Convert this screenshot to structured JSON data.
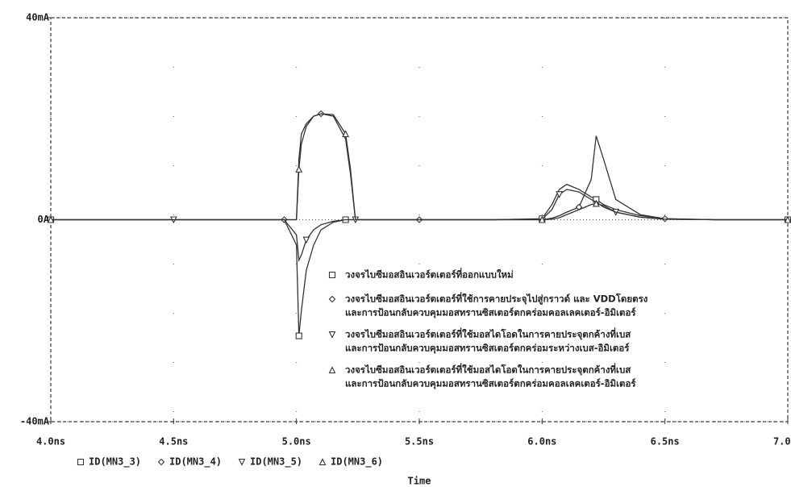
{
  "chart_data": {
    "type": "line",
    "x_label": "Time",
    "x": [
      4.0,
      4.25,
      4.5,
      4.75,
      4.95,
      5.0,
      5.01,
      5.02,
      5.04,
      5.07,
      5.1,
      5.15,
      5.2,
      5.22,
      5.24,
      5.3,
      5.5,
      5.8,
      6.0,
      6.04,
      6.07,
      6.1,
      6.15,
      6.2,
      6.22,
      6.25,
      6.3,
      6.4,
      6.5,
      6.7,
      7.0
    ],
    "xlim": [
      4.0,
      7.0
    ],
    "xticks": [
      {
        "value": 4.0,
        "label": "4.0ns"
      },
      {
        "value": 4.5,
        "label": "4.5ns"
      },
      {
        "value": 5.0,
        "label": "5.0ns"
      },
      {
        "value": 5.5,
        "label": "5.5ns"
      },
      {
        "value": 6.0,
        "label": "6.0ns"
      },
      {
        "value": 6.5,
        "label": "6.5ns"
      },
      {
        "value": 7.0,
        "label": "7.0ns"
      }
    ],
    "ylim": [
      -40,
      40
    ],
    "yticks": [
      {
        "value": -40,
        "label": "-40mA"
      },
      {
        "value": 0,
        "label": "0A"
      },
      {
        "value": 40,
        "label": "40mA"
      }
    ],
    "grid": true,
    "series": [
      {
        "name": "ID(MN3_3)",
        "marker": "square",
        "color": "#333333",
        "values": [
          0,
          0,
          0,
          0,
          0,
          -5,
          -23,
          -18,
          -10,
          -5,
          -2,
          -0.5,
          0,
          0,
          0,
          0,
          0,
          0,
          0.2,
          3,
          6,
          7,
          6,
          4.5,
          4,
          3,
          2,
          0.8,
          0.2,
          0,
          0
        ]
      },
      {
        "name": "ID(MN3_4)",
        "marker": "diamond",
        "color": "#333333",
        "values": [
          0,
          0,
          0,
          0,
          0,
          0,
          12,
          17,
          19,
          20.5,
          21,
          20.5,
          16,
          9,
          0,
          0,
          0,
          0,
          0,
          0.3,
          0.8,
          1.5,
          2.5,
          8,
          16.6,
          12,
          4,
          1,
          0.2,
          0,
          0
        ]
      },
      {
        "name": "ID(MN3_5)",
        "marker": "triangle-down",
        "color": "#333333",
        "values": [
          0,
          0,
          0,
          0,
          0,
          -3,
          -8,
          -7,
          -4,
          -2,
          -1,
          -0.3,
          0,
          0,
          0,
          0,
          0,
          0,
          0.1,
          2,
          5,
          6,
          5.5,
          4,
          3.5,
          2.5,
          1.5,
          0.5,
          0.1,
          0,
          0
        ]
      },
      {
        "name": "ID(MN3_6)",
        "marker": "triangle-up",
        "color": "#333333",
        "values": [
          0,
          0,
          0,
          0,
          0,
          0,
          10,
          15,
          18.5,
          20.5,
          21,
          20.8,
          17,
          10,
          0,
          0,
          0,
          0,
          0,
          0.1,
          0.4,
          1,
          2,
          3,
          3.2,
          2.8,
          1.5,
          0.5,
          0.1,
          0,
          0
        ]
      }
    ],
    "notes": [
      [
        "วงจรไบซีมอสอินเวอร์ตเตอร์ที่ออกแบบใหม่"
      ],
      [
        "วงจรไบซีมอสอินเวอร์ตเตอร์ที่ใช้การคายประจุไปสู่กราวด์ และ VDDโดยตรง",
        "และการป้อนกลับควบคุมมอสทรานซิสเตอร์ตกคร่อมคอลเลคเตอร์-อิมิเตอร์"
      ],
      [
        "วงจรไบซีมอสอินเวอร์ตเตอร์ที่ใช้มอสไดโอดในการคายประจุตกค้างที่เบส",
        "และการป้อนกลับควบคุมมอสทรานซิสเตอร์ตกคร่อมระหว่างเบส-อิมิเตอร์"
      ],
      [
        "วงจรไบซีมอสอินเวอร์ตเตอร์ที่ใช้มอสไดโอดในการคายประจุตกค้างที่เบส",
        "และการป้อนกลับควบคุมมอสทรานซิสเตอร์ตกคร่อมคอลเลคเตอร์-อิมิเตอร์"
      ]
    ]
  }
}
